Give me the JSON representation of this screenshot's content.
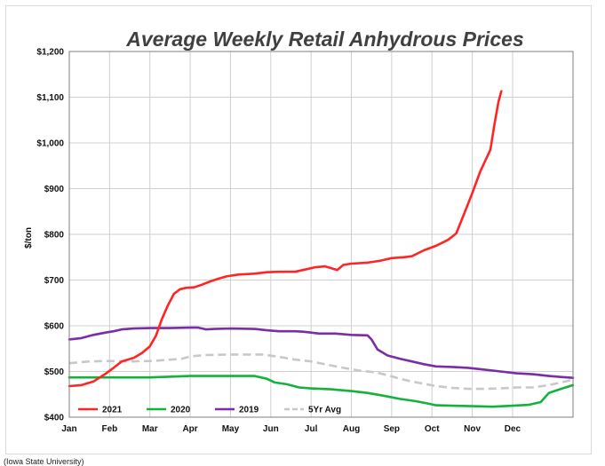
{
  "source_note": "(Iowa State University)",
  "chart_data": {
    "type": "line",
    "title": "Average Weekly Retail Anhydrous Prices",
    "ylabel": "$/ton",
    "xlabel": "",
    "x_ticks": [
      "Jan",
      "Feb",
      "Mar",
      "Apr",
      "May",
      "Jun",
      "Jul",
      "Aug",
      "Sep",
      "Oct",
      "Nov",
      "Dec"
    ],
    "xlim": [
      0,
      12.5
    ],
    "ylim": [
      400,
      1200
    ],
    "y_ticks": [
      400,
      500,
      600,
      700,
      800,
      900,
      1000,
      1100,
      1200
    ],
    "y_tick_labels": [
      "$400",
      "$500",
      "$600",
      "$700",
      "$800",
      "$900",
      "$1,000",
      "$1,100",
      "$1,200"
    ],
    "grid": true,
    "legend_position": "bottom-left inside",
    "series": [
      {
        "name": "2021",
        "color": "#ff2525",
        "dashed": false,
        "points": [
          [
            0,
            468
          ],
          [
            0.3,
            470
          ],
          [
            0.6,
            478
          ],
          [
            0.9,
            495
          ],
          [
            1.1,
            508
          ],
          [
            1.3,
            522
          ],
          [
            1.6,
            530
          ],
          [
            1.8,
            540
          ],
          [
            2.0,
            555
          ],
          [
            2.15,
            578
          ],
          [
            2.3,
            615
          ],
          [
            2.45,
            645
          ],
          [
            2.6,
            670
          ],
          [
            2.75,
            680
          ],
          [
            2.9,
            683
          ],
          [
            3.1,
            684
          ],
          [
            3.3,
            690
          ],
          [
            3.5,
            697
          ],
          [
            3.7,
            703
          ],
          [
            3.9,
            708
          ],
          [
            4.2,
            712
          ],
          [
            4.6,
            714
          ],
          [
            4.9,
            717
          ],
          [
            5.2,
            718
          ],
          [
            5.6,
            718
          ],
          [
            5.8,
            722
          ],
          [
            6.1,
            728
          ],
          [
            6.35,
            730
          ],
          [
            6.5,
            726
          ],
          [
            6.65,
            722
          ],
          [
            6.8,
            733
          ],
          [
            7.0,
            736
          ],
          [
            7.4,
            738
          ],
          [
            7.7,
            742
          ],
          [
            8.0,
            748
          ],
          [
            8.3,
            750
          ],
          [
            8.5,
            752
          ],
          [
            8.8,
            765
          ],
          [
            9.1,
            775
          ],
          [
            9.4,
            788
          ],
          [
            9.6,
            802
          ],
          [
            9.8,
            845
          ],
          [
            10.0,
            890
          ],
          [
            10.2,
            938
          ],
          [
            10.45,
            985
          ],
          [
            10.55,
            1040
          ],
          [
            10.65,
            1090
          ],
          [
            10.72,
            1113
          ]
        ]
      },
      {
        "name": "2020",
        "color": "#14b23c",
        "dashed": false,
        "points": [
          [
            0,
            487
          ],
          [
            1.0,
            487
          ],
          [
            2.0,
            487
          ],
          [
            3.0,
            490
          ],
          [
            4.0,
            490
          ],
          [
            4.6,
            490
          ],
          [
            4.9,
            484
          ],
          [
            5.1,
            476
          ],
          [
            5.4,
            472
          ],
          [
            5.7,
            465
          ],
          [
            6.0,
            463
          ],
          [
            6.5,
            461
          ],
          [
            7.0,
            457
          ],
          [
            7.4,
            453
          ],
          [
            7.8,
            447
          ],
          [
            8.2,
            440
          ],
          [
            8.6,
            435
          ],
          [
            8.9,
            430
          ],
          [
            9.1,
            426
          ],
          [
            9.5,
            425
          ],
          [
            10.0,
            424
          ],
          [
            10.5,
            423
          ],
          [
            11.0,
            425
          ],
          [
            11.4,
            427
          ],
          [
            11.7,
            433
          ],
          [
            11.9,
            453
          ],
          [
            12.2,
            462
          ],
          [
            12.5,
            470
          ]
        ]
      },
      {
        "name": "2019",
        "color": "#7a2ea6",
        "dashed": false,
        "points": [
          [
            0,
            570
          ],
          [
            0.3,
            573
          ],
          [
            0.6,
            580
          ],
          [
            0.9,
            585
          ],
          [
            1.1,
            588
          ],
          [
            1.3,
            592
          ],
          [
            1.6,
            594
          ],
          [
            2.0,
            595
          ],
          [
            2.5,
            595
          ],
          [
            3.0,
            596
          ],
          [
            3.2,
            596
          ],
          [
            3.4,
            592
          ],
          [
            3.6,
            593
          ],
          [
            4.0,
            594
          ],
          [
            4.6,
            593
          ],
          [
            4.9,
            590
          ],
          [
            5.2,
            588
          ],
          [
            5.6,
            588
          ],
          [
            5.8,
            587
          ],
          [
            6.0,
            585
          ],
          [
            6.2,
            583
          ],
          [
            6.6,
            583
          ],
          [
            7.0,
            580
          ],
          [
            7.4,
            579
          ],
          [
            7.5,
            570
          ],
          [
            7.65,
            548
          ],
          [
            7.9,
            535
          ],
          [
            8.2,
            528
          ],
          [
            8.5,
            522
          ],
          [
            8.8,
            516
          ],
          [
            9.1,
            511
          ],
          [
            9.5,
            510
          ],
          [
            9.9,
            508
          ],
          [
            10.3,
            504
          ],
          [
            10.7,
            500
          ],
          [
            11.1,
            496
          ],
          [
            11.5,
            494
          ],
          [
            11.9,
            490
          ],
          [
            12.2,
            488
          ],
          [
            12.5,
            486
          ]
        ]
      },
      {
        "name": "5Yr Avg",
        "color": "#c8c8c8",
        "dashed": true,
        "points": [
          [
            0,
            518
          ],
          [
            0.5,
            522
          ],
          [
            1.0,
            523
          ],
          [
            1.5,
            522
          ],
          [
            2.0,
            523
          ],
          [
            2.4,
            525
          ],
          [
            2.8,
            528
          ],
          [
            3.0,
            533
          ],
          [
            3.4,
            536
          ],
          [
            4.0,
            537
          ],
          [
            4.5,
            537
          ],
          [
            4.8,
            537
          ],
          [
            5.2,
            532
          ],
          [
            5.6,
            526
          ],
          [
            6.0,
            522
          ],
          [
            6.4,
            515
          ],
          [
            6.8,
            508
          ],
          [
            7.2,
            502
          ],
          [
            7.6,
            498
          ],
          [
            7.9,
            492
          ],
          [
            8.2,
            484
          ],
          [
            8.5,
            478
          ],
          [
            8.8,
            473
          ],
          [
            9.1,
            468
          ],
          [
            9.5,
            464
          ],
          [
            9.9,
            462
          ],
          [
            10.3,
            462
          ],
          [
            10.7,
            463
          ],
          [
            11.1,
            465
          ],
          [
            11.5,
            465
          ],
          [
            11.9,
            470
          ],
          [
            12.2,
            476
          ],
          [
            12.5,
            482
          ]
        ]
      }
    ]
  }
}
